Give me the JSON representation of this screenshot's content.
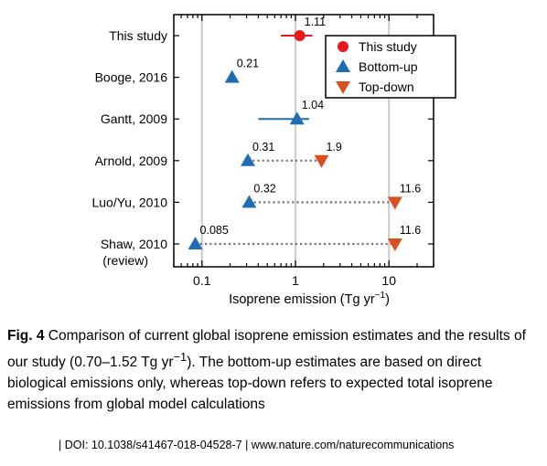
{
  "chart_data": {
    "type": "scatter",
    "xscale": "log",
    "xlim": [
      0.05,
      30
    ],
    "xticks": [
      0.1,
      1,
      10
    ],
    "xtick_labels": [
      "0.1",
      "1",
      "10"
    ],
    "xlabel_prefix": "Isoprene emission (Tg yr",
    "xlabel_sup": "−1",
    "xlabel_suffix": ")",
    "grid": "vertical at major ticks",
    "legend_position": "top-right",
    "legend": [
      {
        "label": "This study",
        "marker": "circle",
        "color": "#e8191c"
      },
      {
        "label": "Bottom-up",
        "marker": "triangle-up",
        "color": "#1f6eb4"
      },
      {
        "label": "Top-down",
        "marker": "triangle-down",
        "color": "#d9501f"
      }
    ],
    "rows": [
      {
        "label": "This study",
        "label2": "",
        "points": [
          {
            "kind": "This study",
            "value": 1.11,
            "label": "1.11",
            "err": [
              0.7,
              1.52
            ]
          }
        ]
      },
      {
        "label": "Booge, 2016",
        "label2": "",
        "points": [
          {
            "kind": "Bottom-up",
            "value": 0.21,
            "label": "0.21"
          }
        ]
      },
      {
        "label": "Gantt, 2009",
        "label2": "",
        "points": [
          {
            "kind": "Bottom-up",
            "value": 1.04,
            "label": "1.04",
            "err": [
              0.4,
              1.4
            ]
          }
        ]
      },
      {
        "label": "Arnold, 2009",
        "label2": "",
        "points": [
          {
            "kind": "Bottom-up",
            "value": 0.31,
            "label": "0.31"
          },
          {
            "kind": "Top-down",
            "value": 1.9,
            "label": "1.9"
          }
        ],
        "dotted": true
      },
      {
        "label": "Luo/Yu, 2010",
        "label2": "",
        "points": [
          {
            "kind": "Bottom-up",
            "value": 0.32,
            "label": "0.32"
          },
          {
            "kind": "Top-down",
            "value": 11.6,
            "label": "11.6"
          }
        ],
        "dotted": true
      },
      {
        "label": "Shaw, 2010",
        "label2": "(review)",
        "points": [
          {
            "kind": "Bottom-up",
            "value": 0.085,
            "label": "0.085"
          },
          {
            "kind": "Top-down",
            "value": 11.6,
            "label": "11.6"
          }
        ],
        "dotted": true
      }
    ]
  },
  "caption": {
    "fig_label": "Fig. 4",
    "text_a": " Comparison of current global isoprene emission estimates and the results of our study (0.70–1.52 Tg yr",
    "sup": "−1",
    "text_b": "). The bottom-up estimates are based on direct biological emissions only, whereas top-down refers to expected total isoprene emissions from global model calculations"
  },
  "footer": {
    "text": "| DOI: 10.1038/s41467-018-04528-7 | www.nature.com/naturecommunications"
  }
}
